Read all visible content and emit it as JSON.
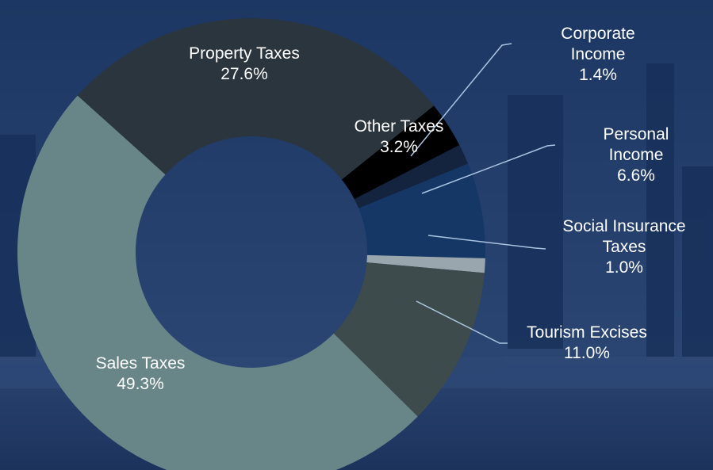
{
  "chart_data": {
    "type": "donut",
    "categories": [
      "Property Taxes",
      "Other Taxes",
      "Corporate Income",
      "Personal Income",
      "Social Insurance Taxes",
      "Tourism Excises",
      "Sales Taxes"
    ],
    "values": [
      27.6,
      3.2,
      1.4,
      6.6,
      1.0,
      11.0,
      49.3
    ],
    "value_labels": [
      "27.6%",
      "3.2%",
      "1.4%",
      "6.6%",
      "1.0%",
      "11.0%",
      "49.3%"
    ],
    "colors": [
      "#2a353d",
      "#000000",
      "#14243f",
      "#153766",
      "#9aa6ad",
      "#3d4b4c",
      "#688688"
    ]
  }
}
